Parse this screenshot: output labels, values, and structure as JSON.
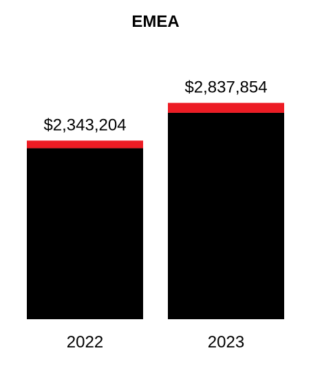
{
  "chart_data": {
    "type": "bar",
    "title": "EMEA",
    "xlabel": "",
    "ylabel": "",
    "categories": [
      "2022",
      "2023"
    ],
    "values": [
      2343204,
      2837854
    ],
    "value_labels": [
      "$2,343,204",
      "$2,837,854"
    ],
    "stacked_top_segment": [
      100000,
      130000
    ],
    "ylim": [
      0,
      3700000
    ],
    "grid": false,
    "legend": "none",
    "colors": {
      "bar": "#000000",
      "top_segment": "#ed1c24"
    }
  }
}
